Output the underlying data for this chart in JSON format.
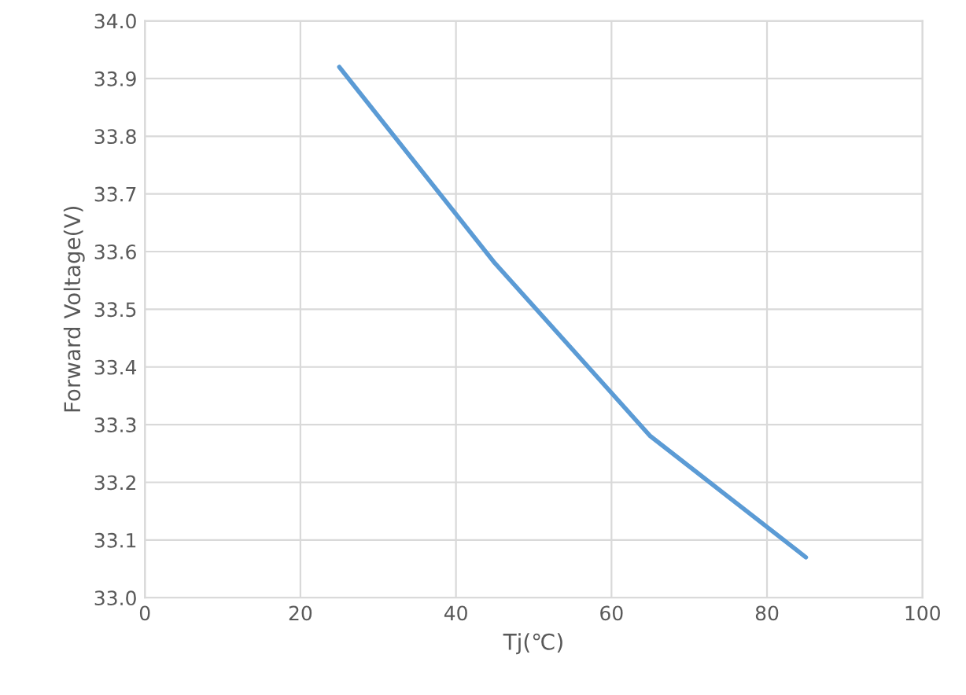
{
  "chart_data": {
    "type": "line",
    "xlabel": "Tj(℃)",
    "ylabel": "Forward Voltage(V)",
    "x": [
      25,
      45,
      65,
      85
    ],
    "series": [
      {
        "color": "#5b9bd5",
        "values": [
          33.92,
          33.58,
          33.28,
          33.07
        ]
      }
    ],
    "xlim": [
      0,
      100
    ],
    "xticks": [
      0,
      20,
      40,
      60,
      80,
      100
    ],
    "ylim": [
      33.0,
      34.0
    ],
    "yticks": [
      {
        "value": 33.0,
        "label": "33.0"
      },
      33.1,
      33.2,
      33.3,
      33.4,
      33.5,
      33.6,
      33.7,
      33.8,
      33.9,
      {
        "value": 34.0,
        "label": "34.0"
      }
    ],
    "grid": true,
    "marker": "none",
    "line_style": "solid"
  }
}
